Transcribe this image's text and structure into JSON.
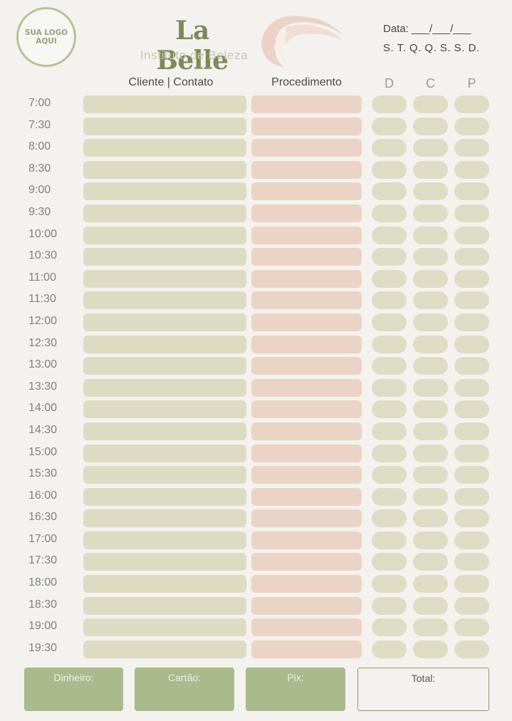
{
  "header": {
    "logo_placeholder_line1": "SUA LOGO",
    "logo_placeholder_line2": "AQUI",
    "brand_name": "La Belle",
    "brand_tagline": "Instituto de Beleza",
    "brand_icon": "woman-silhouette-icon",
    "date_label": "Data: ___/___/___",
    "weekdays": "S. T. Q. Q. S. S. D."
  },
  "columns": {
    "client": "Cliente | Contato",
    "procedure": "Procedimento",
    "d": "D",
    "c": "C",
    "p": "P"
  },
  "times": [
    "7:00",
    "7:30",
    "8:00",
    "8:30",
    "9:00",
    "9:30",
    "10:00",
    "10:30",
    "11:00",
    "11:30",
    "12:00",
    "12:30",
    "13:00",
    "13:30",
    "14:00",
    "14:30",
    "15:00",
    "15:30",
    "16:00",
    "16:30",
    "17:00",
    "17:30",
    "18:00",
    "18:30",
    "19:00",
    "19:30"
  ],
  "footer": {
    "cash": "Dinheiro:",
    "card": "Cartão:",
    "pix": "Pix:",
    "total": "Total:"
  },
  "colors": {
    "olive": "#7d8a58",
    "client_cell": "#dedbc3",
    "procedure_cell": "#ebd3c6",
    "footer_green": "#a9ba8c"
  }
}
